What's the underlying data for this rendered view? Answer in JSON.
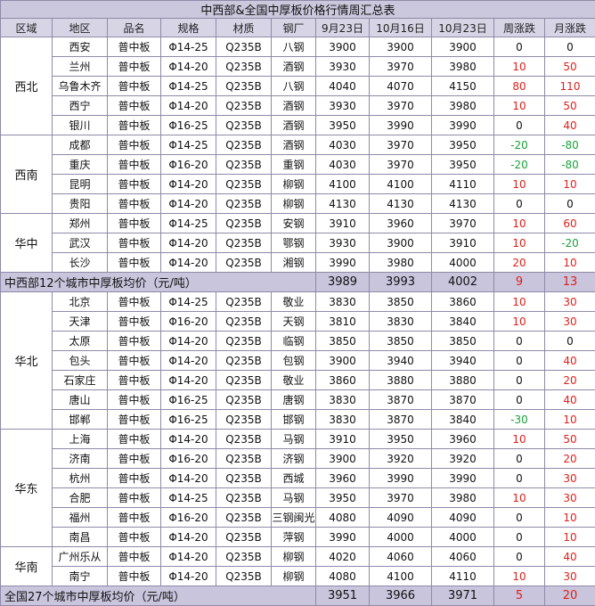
{
  "title": "中西部&全国中厚板价格行情周汇总表",
  "headers": [
    "区域",
    "地区",
    "品名",
    "规格",
    "材质",
    "钢厂",
    "9月23日",
    "10月16日",
    "10月23日",
    "周涨跌",
    "月涨跌"
  ],
  "colors": {
    "up": "#e0201a",
    "down": "#1aa33a",
    "header_bg": "#d7d4e6",
    "avg_bg": "#c9c5dd"
  },
  "groups": [
    {
      "region": "西北",
      "rows": [
        {
          "city": "西安",
          "product": "普中板",
          "spec": "Φ14-25",
          "material": "Q235B",
          "mill": "八钢",
          "p1": "3900",
          "p2": "3900",
          "p3": "3900",
          "week": "0",
          "month": "0"
        },
        {
          "city": "兰州",
          "product": "普中板",
          "spec": "Φ14-20",
          "material": "Q235B",
          "mill": "酒钢",
          "p1": "3930",
          "p2": "3970",
          "p3": "3980",
          "week": "10",
          "month": "50"
        },
        {
          "city": "乌鲁木齐",
          "product": "普中板",
          "spec": "Φ14-25",
          "material": "Q235B",
          "mill": "八钢",
          "p1": "4040",
          "p2": "4070",
          "p3": "4150",
          "week": "80",
          "month": "110"
        },
        {
          "city": "西宁",
          "product": "普中板",
          "spec": "Φ14-20",
          "material": "Q235B",
          "mill": "酒钢",
          "p1": "3930",
          "p2": "3970",
          "p3": "3980",
          "week": "10",
          "month": "50"
        },
        {
          "city": "银川",
          "product": "普中板",
          "spec": "Φ16-25",
          "material": "Q235B",
          "mill": "酒钢",
          "p1": "3950",
          "p2": "3990",
          "p3": "3990",
          "week": "0",
          "month": "40"
        }
      ]
    },
    {
      "region": "西南",
      "rows": [
        {
          "city": "成都",
          "product": "普中板",
          "spec": "Φ14-25",
          "material": "Q235B",
          "mill": "酒钢",
          "p1": "4030",
          "p2": "3970",
          "p3": "3950",
          "week": "-20",
          "month": "-80"
        },
        {
          "city": "重庆",
          "product": "普中板",
          "spec": "Φ16-20",
          "material": "Q235B",
          "mill": "重钢",
          "p1": "4030",
          "p2": "3970",
          "p3": "3950",
          "week": "-20",
          "month": "-80"
        },
        {
          "city": "昆明",
          "product": "普中板",
          "spec": "Φ14-20",
          "material": "Q235B",
          "mill": "柳钢",
          "p1": "4100",
          "p2": "4100",
          "p3": "4110",
          "week": "10",
          "month": "10"
        },
        {
          "city": "贵阳",
          "product": "普中板",
          "spec": "Φ14-20",
          "material": "Q235B",
          "mill": "柳钢",
          "p1": "4130",
          "p2": "4130",
          "p3": "4130",
          "week": "0",
          "month": "0"
        }
      ]
    },
    {
      "region": "华中",
      "rows": [
        {
          "city": "郑州",
          "product": "普中板",
          "spec": "Φ14-25",
          "material": "Q235B",
          "mill": "安钢",
          "p1": "3910",
          "p2": "3960",
          "p3": "3970",
          "week": "10",
          "month": "60"
        },
        {
          "city": "武汉",
          "product": "普中板",
          "spec": "Φ14-20",
          "material": "Q235B",
          "mill": "鄂钢",
          "p1": "3930",
          "p2": "3900",
          "p3": "3910",
          "week": "10",
          "month": "-20"
        },
        {
          "city": "长沙",
          "product": "普中板",
          "spec": "Φ14-20",
          "material": "Q235B",
          "mill": "湘钢",
          "p1": "3990",
          "p2": "3980",
          "p3": "4000",
          "week": "20",
          "month": "10"
        }
      ]
    }
  ],
  "avg_midwest": {
    "label": "中西部12个城市中厚板均价（元/吨）",
    "p1": "3989",
    "p2": "3993",
    "p3": "4002",
    "week": "9",
    "month": "13"
  },
  "groups2": [
    {
      "region": "华北",
      "rows": [
        {
          "city": "北京",
          "product": "普中板",
          "spec": "Φ14-25",
          "material": "Q235B",
          "mill": "敬业",
          "p1": "3830",
          "p2": "3850",
          "p3": "3860",
          "week": "10",
          "month": "30"
        },
        {
          "city": "天津",
          "product": "普中板",
          "spec": "Φ16-20",
          "material": "Q235B",
          "mill": "天钢",
          "p1": "3810",
          "p2": "3830",
          "p3": "3840",
          "week": "10",
          "month": "30"
        },
        {
          "city": "太原",
          "product": "普中板",
          "spec": "Φ14-20",
          "material": "Q235B",
          "mill": "临钢",
          "p1": "3850",
          "p2": "3850",
          "p3": "3850",
          "week": "0",
          "month": "0"
        },
        {
          "city": "包头",
          "product": "普中板",
          "spec": "Φ14-20",
          "material": "Q235B",
          "mill": "包钢",
          "p1": "3900",
          "p2": "3940",
          "p3": "3940",
          "week": "0",
          "month": "40"
        },
        {
          "city": "石家庄",
          "product": "普中板",
          "spec": "Φ14-20",
          "material": "Q235B",
          "mill": "敬业",
          "p1": "3860",
          "p2": "3880",
          "p3": "3880",
          "week": "0",
          "month": "20"
        },
        {
          "city": "唐山",
          "product": "普中板",
          "spec": "Φ16-25",
          "material": "Q235B",
          "mill": "唐钢",
          "p1": "3830",
          "p2": "3870",
          "p3": "3870",
          "week": "0",
          "month": "40"
        },
        {
          "city": "邯郸",
          "product": "普中板",
          "spec": "Φ16-25",
          "material": "Q235B",
          "mill": "邯钢",
          "p1": "3830",
          "p2": "3870",
          "p3": "3840",
          "week": "-30",
          "month": "10"
        }
      ]
    },
    {
      "region": "华东",
      "rows": [
        {
          "city": "上海",
          "product": "普中板",
          "spec": "Φ14-20",
          "material": "Q235B",
          "mill": "马钢",
          "p1": "3910",
          "p2": "3950",
          "p3": "3960",
          "week": "10",
          "month": "50"
        },
        {
          "city": "济南",
          "product": "普中板",
          "spec": "Φ16-20",
          "material": "Q235B",
          "mill": "济钢",
          "p1": "3900",
          "p2": "3920",
          "p3": "3920",
          "week": "0",
          "month": "20"
        },
        {
          "city": "杭州",
          "product": "普中板",
          "spec": "Φ14-20",
          "material": "Q235B",
          "mill": "西城",
          "p1": "3960",
          "p2": "3990",
          "p3": "3990",
          "week": "0",
          "month": "30"
        },
        {
          "city": "合肥",
          "product": "普中板",
          "spec": "Φ14-25",
          "material": "Q235B",
          "mill": "马钢",
          "p1": "3950",
          "p2": "3970",
          "p3": "3980",
          "week": "10",
          "month": "30"
        },
        {
          "city": "福州",
          "product": "普中板",
          "spec": "Φ16-20",
          "material": "Q235B",
          "mill": "三钢闽光",
          "p1": "4080",
          "p2": "4090",
          "p3": "4090",
          "week": "0",
          "month": "10"
        },
        {
          "city": "南昌",
          "product": "普中板",
          "spec": "Φ14-20",
          "material": "Q235B",
          "mill": "萍钢",
          "p1": "3990",
          "p2": "4000",
          "p3": "4000",
          "week": "0",
          "month": "10"
        }
      ]
    },
    {
      "region": "华南",
      "rows": [
        {
          "city": "广州乐从",
          "product": "普中板",
          "spec": "Φ14-20",
          "material": "Q235B",
          "mill": "柳钢",
          "p1": "4020",
          "p2": "4060",
          "p3": "4060",
          "week": "0",
          "month": "40"
        },
        {
          "city": "南宁",
          "product": "普中板",
          "spec": "Φ14-20",
          "material": "Q235B",
          "mill": "柳钢",
          "p1": "4080",
          "p2": "4100",
          "p3": "4110",
          "week": "10",
          "month": "30"
        }
      ]
    }
  ],
  "avg_national": {
    "label": "全国27个城市中厚板均价（元/吨）",
    "p1": "3951",
    "p2": "3966",
    "p3": "3971",
    "week": "5",
    "month": "20"
  }
}
